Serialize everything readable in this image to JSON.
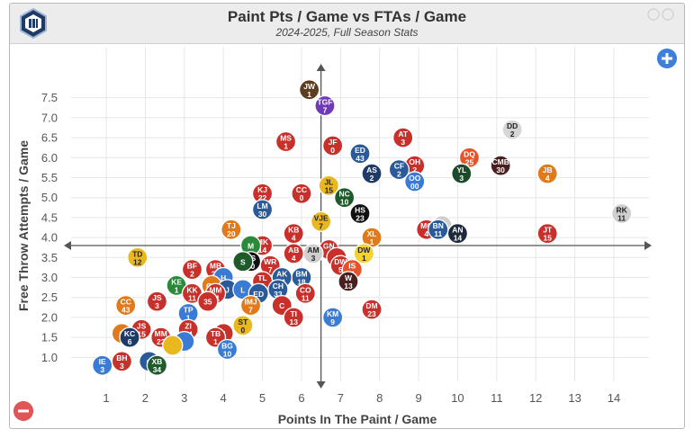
{
  "header": {
    "title": "Paint Pts / Game vs FTAs / Game",
    "subtitle": "2024-2025, Full Season Stats"
  },
  "controls": {
    "zoom_in_icon": "plus-icon",
    "zoom_out_icon": "minus-icon",
    "logo_icon": "team-logo-icon"
  },
  "chart_data": {
    "type": "scatter",
    "title": "Paint Pts / Game vs FTAs / Game",
    "subtitle": "2024-2025, Full Season Stats",
    "xlabel": "Points In The Paint / Game",
    "ylabel": "Free Throw Attempts / Game",
    "xlim": [
      0.1,
      14.9
    ],
    "ylim": [
      0.4,
      8.1
    ],
    "xticks": [
      1,
      2,
      3,
      4,
      5,
      6,
      7,
      8,
      9,
      10,
      11,
      12,
      13,
      14
    ],
    "yticks": [
      1.0,
      1.5,
      2.0,
      2.5,
      3.0,
      3.5,
      4.0,
      4.5,
      5.0,
      5.5,
      6.0,
      6.5,
      7.0,
      7.5
    ],
    "ytick_labels": [
      "1.0",
      "1.5",
      "2.0",
      "2.5",
      "3.0",
      "3.5",
      "4.0",
      "4.5",
      "5.0",
      "5.5",
      "6.0",
      "6.5",
      "7.0",
      "7.5"
    ],
    "crosshair": {
      "x": 6.5,
      "y": 3.8
    },
    "grid": true,
    "points": [
      {
        "label": "JW",
        "num": "1",
        "x": 6.2,
        "y": 7.7,
        "color": "#5c3d1f"
      },
      {
        "label": "TGF",
        "num": "7",
        "x": 6.6,
        "y": 7.3,
        "color": "#6f3ab8"
      },
      {
        "label": "MS",
        "num": "1",
        "x": 5.6,
        "y": 6.4,
        "color": "#c8302c"
      },
      {
        "label": "JF",
        "num": "0",
        "x": 6.8,
        "y": 6.3,
        "color": "#c8302c"
      },
      {
        "label": "AT",
        "num": "3",
        "x": 8.6,
        "y": 6.5,
        "color": "#c8302c"
      },
      {
        "label": "DD",
        "num": "2",
        "x": 11.4,
        "y": 6.7,
        "color": "#d6d6d6"
      },
      {
        "label": "ED",
        "num": "43",
        "x": 7.5,
        "y": 6.1,
        "color": "#2a5a9a"
      },
      {
        "label": "OH",
        "num": "2",
        "x": 8.9,
        "y": 5.8,
        "color": "#c8302c"
      },
      {
        "label": "CF",
        "num": "2",
        "x": 8.5,
        "y": 5.7,
        "color": "#2a5a9a"
      },
      {
        "label": "AS",
        "num": "2",
        "x": 7.8,
        "y": 5.6,
        "color": "#1f3a66"
      },
      {
        "label": "DQ",
        "num": "25",
        "x": 10.3,
        "y": 6.0,
        "color": "#e8542a"
      },
      {
        "label": "YL",
        "num": "3",
        "x": 10.1,
        "y": 5.6,
        "color": "#1e4a2a"
      },
      {
        "label": "CMB",
        "num": "30",
        "x": 11.1,
        "y": 5.8,
        "color": "#4a1f1f"
      },
      {
        "label": "JB",
        "num": "4",
        "x": 12.3,
        "y": 5.6,
        "color": "#e07a1a"
      },
      {
        "label": "OO",
        "num": "00",
        "x": 8.9,
        "y": 5.4,
        "color": "#3a7bd5"
      },
      {
        "label": "JL",
        "num": "15",
        "x": 6.7,
        "y": 5.3,
        "color": "#e8b81e"
      },
      {
        "label": "KJ",
        "num": "22",
        "x": 5.0,
        "y": 5.1,
        "color": "#c8302c"
      },
      {
        "label": "CC",
        "num": "0",
        "x": 6.0,
        "y": 5.1,
        "color": "#c8302c"
      },
      {
        "label": "NC",
        "num": "10",
        "x": 7.1,
        "y": 5.0,
        "color": "#1e5a2a"
      },
      {
        "label": "LM",
        "num": "30",
        "x": 5.0,
        "y": 4.7,
        "color": "#2a5a9a"
      },
      {
        "label": "HS",
        "num": "23",
        "x": 7.5,
        "y": 4.6,
        "color": "#111111"
      },
      {
        "label": "RK",
        "num": "11",
        "x": 14.2,
        "y": 4.6,
        "color": "#cfcfcf"
      },
      {
        "label": "VJE",
        "num": "7",
        "x": 6.5,
        "y": 4.4,
        "color": "#e8b81e"
      },
      {
        "label": "TJ",
        "num": "20",
        "x": 4.2,
        "y": 4.2,
        "color": "#e07a1a"
      },
      {
        "label": "KB",
        "num": "4",
        "x": 5.8,
        "y": 4.1,
        "color": "#c8302c"
      },
      {
        "label": "MC",
        "num": "4",
        "x": 9.2,
        "y": 4.2,
        "color": "#c8302c"
      },
      {
        "label": "TS",
        "num": "",
        "x": 9.6,
        "y": 4.3,
        "color": "#cfcfcf"
      },
      {
        "label": "BN",
        "num": "11",
        "x": 9.5,
        "y": 4.2,
        "color": "#2a5a9a"
      },
      {
        "label": "AN",
        "num": "14",
        "x": 10.0,
        "y": 4.1,
        "color": "#1e2a3a"
      },
      {
        "label": "XL",
        "num": "1",
        "x": 7.8,
        "y": 4.0,
        "color": "#e07a1a"
      },
      {
        "label": "JT",
        "num": "15",
        "x": 12.3,
        "y": 4.1,
        "color": "#c8302c"
      },
      {
        "label": "MK",
        "num": "14",
        "x": 5.0,
        "y": 3.8,
        "color": "#c8302c"
      },
      {
        "label": "M",
        "num": "",
        "x": 4.7,
        "y": 3.8,
        "color": "#2a8a3a"
      },
      {
        "label": "GN",
        "num": "4",
        "x": 6.7,
        "y": 3.7,
        "color": "#c8302c"
      },
      {
        "label": "AM",
        "num": "3",
        "x": 6.3,
        "y": 3.6,
        "color": "#cfcfcf"
      },
      {
        "label": "AB",
        "num": "4",
        "x": 5.8,
        "y": 3.6,
        "color": "#c8302c"
      },
      {
        "label": "DW",
        "num": "1",
        "x": 7.6,
        "y": 3.6,
        "color": "#f2d22e"
      },
      {
        "label": "TD",
        "num": "12",
        "x": 1.8,
        "y": 3.5,
        "color": "#e8b81e"
      },
      {
        "label": "J",
        "num": "",
        "x": 6.9,
        "y": 3.5,
        "color": "#c8302c"
      },
      {
        "label": "PS",
        "num": "20",
        "x": 4.7,
        "y": 3.4,
        "color": "#111111"
      },
      {
        "label": "WR",
        "num": "7",
        "x": 5.2,
        "y": 3.3,
        "color": "#c8302c"
      },
      {
        "label": "S",
        "num": "",
        "x": 4.5,
        "y": 3.4,
        "color": "#1e5a2a"
      },
      {
        "label": "DW",
        "num": "5",
        "x": 7.0,
        "y": 3.3,
        "color": "#c8302c"
      },
      {
        "label": "IS",
        "num": "4",
        "x": 7.3,
        "y": 3.2,
        "color": "#e8542a"
      },
      {
        "label": "BF",
        "num": "2",
        "x": 3.2,
        "y": 3.2,
        "color": "#c8302c"
      },
      {
        "label": "MB",
        "num": "21",
        "x": 3.8,
        "y": 3.2,
        "color": "#c8302c"
      },
      {
        "label": "BM",
        "num": "18",
        "x": 6.0,
        "y": 3.0,
        "color": "#2a5a9a"
      },
      {
        "label": "AK",
        "num": "11",
        "x": 5.5,
        "y": 3.0,
        "color": "#2a5a9a"
      },
      {
        "label": "TL",
        "num": "3",
        "x": 5.0,
        "y": 2.9,
        "color": "#c8302c"
      },
      {
        "label": "H",
        "num": "",
        "x": 4.0,
        "y": 3.0,
        "color": "#3a7bd5"
      },
      {
        "label": "W",
        "num": "13",
        "x": 7.2,
        "y": 2.9,
        "color": "#4a1f1f"
      },
      {
        "label": "KE",
        "num": "1",
        "x": 2.8,
        "y": 2.8,
        "color": "#2a8a3a"
      },
      {
        "label": "CH",
        "num": "",
        "x": 3.7,
        "y": 2.8,
        "color": "#e07a1a"
      },
      {
        "label": "J",
        "num": "",
        "x": 4.1,
        "y": 2.7,
        "color": "#2a5a9a"
      },
      {
        "label": "L",
        "num": "",
        "x": 4.5,
        "y": 2.7,
        "color": "#3a7bd5"
      },
      {
        "label": "CH",
        "num": "33",
        "x": 5.4,
        "y": 2.7,
        "color": "#2a5a9a"
      },
      {
        "label": "KK",
        "num": "11",
        "x": 3.2,
        "y": 2.6,
        "color": "#c8302c"
      },
      {
        "label": "MM",
        "num": "21",
        "x": 3.8,
        "y": 2.6,
        "color": "#c8302c"
      },
      {
        "label": "ED",
        "num": "",
        "x": 4.9,
        "y": 2.6,
        "color": "#2a5a9a"
      },
      {
        "label": "CO",
        "num": "11",
        "x": 6.1,
        "y": 2.6,
        "color": "#c8302c"
      },
      {
        "label": "35",
        "num": "",
        "x": 3.6,
        "y": 2.4,
        "color": "#c8302c"
      },
      {
        "label": "JS",
        "num": "3",
        "x": 2.3,
        "y": 2.4,
        "color": "#c8302c"
      },
      {
        "label": "IMJ",
        "num": "7",
        "x": 4.7,
        "y": 2.3,
        "color": "#e07a1a"
      },
      {
        "label": "C",
        "num": "",
        "x": 5.5,
        "y": 2.3,
        "color": "#c8302c"
      },
      {
        "label": "CC",
        "num": "43",
        "x": 1.5,
        "y": 2.3,
        "color": "#e07a1a"
      },
      {
        "label": "DM",
        "num": "23",
        "x": 7.8,
        "y": 2.2,
        "color": "#c8302c"
      },
      {
        "label": "TP",
        "num": "1",
        "x": 3.1,
        "y": 2.1,
        "color": "#3a7bd5"
      },
      {
        "label": "TI",
        "num": "13",
        "x": 5.8,
        "y": 2.0,
        "color": "#c8302c"
      },
      {
        "label": "KM",
        "num": "9",
        "x": 6.8,
        "y": 2.0,
        "color": "#3a7bd5"
      },
      {
        "label": "ST",
        "num": "0",
        "x": 4.5,
        "y": 1.8,
        "color": "#e8b81e"
      },
      {
        "label": "ZI",
        "num": "44",
        "x": 3.1,
        "y": 1.7,
        "color": "#c8302c"
      },
      {
        "label": "JS",
        "num": "15",
        "x": 1.9,
        "y": 1.7,
        "color": "#c8302c"
      },
      {
        "label": "C",
        "num": "",
        "x": 1.4,
        "y": 1.6,
        "color": "#e07a1a"
      },
      {
        "label": "KC",
        "num": "6",
        "x": 1.6,
        "y": 1.5,
        "color": "#1f3a66"
      },
      {
        "label": "MM",
        "num": "22",
        "x": 2.4,
        "y": 1.5,
        "color": "#c8302c"
      },
      {
        "label": "J",
        "num": "",
        "x": 4.0,
        "y": 1.6,
        "color": "#c8302c"
      },
      {
        "label": "TB",
        "num": "1",
        "x": 3.8,
        "y": 1.5,
        "color": "#c8302c"
      },
      {
        "label": "",
        "num": "",
        "x": 3.0,
        "y": 1.4,
        "color": "#3a7bd5"
      },
      {
        "label": "",
        "num": "",
        "x": 2.7,
        "y": 1.3,
        "color": "#e8b81e"
      },
      {
        "label": "BG",
        "num": "10",
        "x": 4.1,
        "y": 1.2,
        "color": "#3a7bd5"
      },
      {
        "label": "BH",
        "num": "3",
        "x": 1.4,
        "y": 0.9,
        "color": "#c8302c"
      },
      {
        "label": "IE",
        "num": "3",
        "x": 0.9,
        "y": 0.8,
        "color": "#3a7bd5"
      },
      {
        "label": "C",
        "num": "",
        "x": 2.1,
        "y": 0.9,
        "color": "#2a5a9a"
      },
      {
        "label": "XB",
        "num": "34",
        "x": 2.3,
        "y": 0.8,
        "color": "#1e5a2a"
      }
    ]
  }
}
